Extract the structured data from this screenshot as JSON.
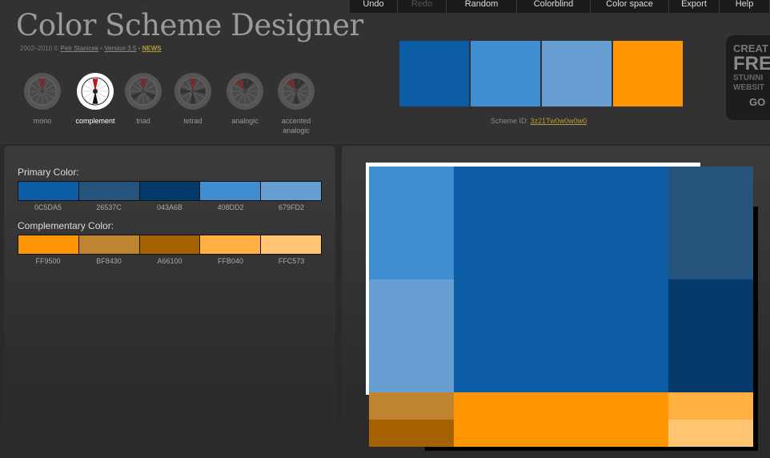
{
  "app": {
    "title": "Color Scheme Designer",
    "credits": {
      "prefix": "2002–2010 ©",
      "author": "Petr Stanicek",
      "sep1": "•",
      "version": "Version 3.5",
      "sep2": "•",
      "news": "NEWS"
    }
  },
  "modes": [
    {
      "label": "mono",
      "icon": "mono-wheel-icon",
      "active": false
    },
    {
      "label": "complement",
      "icon": "complement-wheel-icon",
      "active": true
    },
    {
      "label": "triad",
      "icon": "triad-wheel-icon",
      "active": false
    },
    {
      "label": "tetrad",
      "icon": "tetrad-wheel-icon",
      "active": false
    },
    {
      "label": "analogic",
      "icon": "analogic-wheel-icon",
      "active": false
    },
    {
      "label": "accented analogic",
      "icon": "accented-analogic-wheel-icon",
      "active": false
    }
  ],
  "menu": [
    {
      "label": "Undo",
      "enabled": true
    },
    {
      "label": "Redo",
      "enabled": false
    },
    {
      "label": "Random",
      "enabled": true
    },
    {
      "label": "Colorblind",
      "enabled": true
    },
    {
      "label": "Color space",
      "enabled": true
    },
    {
      "label": "Export",
      "enabled": true
    },
    {
      "label": "Help",
      "enabled": true
    }
  ],
  "preview_swatches": [
    "#0C5DA5",
    "#408DD2",
    "#679FD2",
    "#FF9500"
  ],
  "scheme": {
    "label": "Scheme ID:",
    "id": "3z21Tw0w0w0w0"
  },
  "ad": {
    "line1": "CREAT",
    "line2": "FRE",
    "line3": "STUNNI",
    "line4": "WEBSIT",
    "cta": "GO"
  },
  "primary": {
    "title": "Primary Color:",
    "colors": [
      "0C5DA5",
      "26537C",
      "043A6B",
      "408DD2",
      "679FD2"
    ]
  },
  "complementary": {
    "title": "Complementary Color:",
    "colors": [
      "FF9500",
      "BF8430",
      "A66100",
      "FFB040",
      "FFC573"
    ]
  }
}
